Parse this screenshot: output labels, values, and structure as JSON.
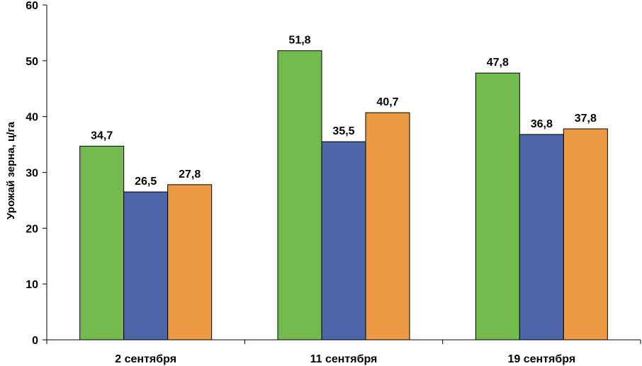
{
  "chart_data": {
    "type": "bar",
    "categories": [
      "2 сентября",
      "11 сентября",
      "19 сентября"
    ],
    "series": [
      {
        "values": [
          34.7,
          51.8,
          47.8
        ],
        "labels": [
          "34,7",
          "51,8",
          "47,8"
        ],
        "color": "#74bb4f"
      },
      {
        "values": [
          26.5,
          35.5,
          36.8
        ],
        "labels": [
          "26,5",
          "35,5",
          "36,8"
        ],
        "color": "#4e66a8"
      },
      {
        "values": [
          27.8,
          40.7,
          37.8
        ],
        "labels": [
          "27,8",
          "40,7",
          "37,8"
        ],
        "color": "#ec9a44"
      }
    ],
    "ylabel": "Урожай зерна, ц/га",
    "xlabel": "",
    "ylim": [
      0,
      60
    ],
    "yticks": [
      "0",
      "10",
      "20",
      "30",
      "40",
      "50",
      "60"
    ],
    "grid": false,
    "legend": "none"
  }
}
